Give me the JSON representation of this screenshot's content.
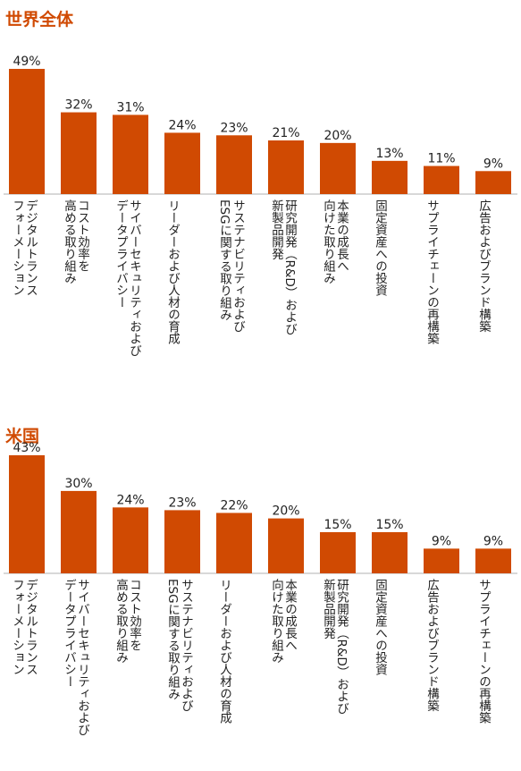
{
  "chart_data": [
    {
      "type": "bar",
      "title": "世界全体",
      "categories": [
        "デジタルトランス\nフォーメーション",
        "コスト効率を\n高める取り組み",
        "サイバーセキュリティおよび\nデータプライバシー",
        "リーダーおよび人材の育成",
        "サステナビリティおよび\nESGに関する取り組み",
        "研究開発（R&D）および\n新製品開発",
        "本業の成長へ\n向けた取り組み",
        "固定資産への投資",
        "サプライチェーンの再構築",
        "広告およびブランド構築"
      ],
      "values": [
        49,
        32,
        31,
        24,
        23,
        21,
        20,
        13,
        11,
        9
      ],
      "value_labels": [
        "49%",
        "32%",
        "31%",
        "24%",
        "23%",
        "21%",
        "20%",
        "13%",
        "11%",
        "9%"
      ],
      "unit": "%",
      "ylim": [
        0,
        49
      ],
      "grid": false,
      "bar_color": "#d04a02"
    },
    {
      "type": "bar",
      "title": "米国",
      "categories": [
        "デジタルトランス\nフォーメーション",
        "サイバーセキュリティおよび\nデータプライバシー",
        "コスト効率を\n高める取り組み",
        "サステナビリティおよび\nESGに関する取り組み",
        "リーダーおよび人材の育成",
        "本業の成長へ\n向けた取り組み",
        "研究開発（R&D）および\n新製品開発",
        "固定資産への投資",
        "広告およびブランド構築",
        "サプライチェーンの再構築"
      ],
      "values": [
        43,
        30,
        24,
        23,
        22,
        20,
        15,
        15,
        9,
        9
      ],
      "value_labels": [
        "43%",
        "30%",
        "24%",
        "23%",
        "22%",
        "20%",
        "15%",
        "15%",
        "9%",
        "9%"
      ],
      "unit": "%",
      "ylim": [
        0,
        43
      ],
      "grid": false,
      "bar_color": "#d04a02"
    }
  ]
}
